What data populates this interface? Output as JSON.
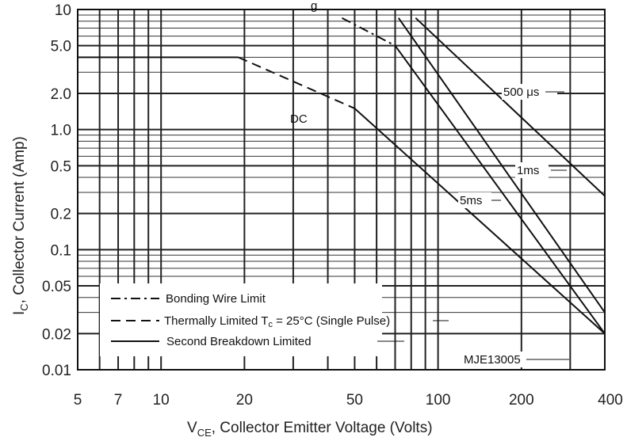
{
  "chart_data": {
    "type": "line",
    "title_fragment": "g",
    "xlabel": {
      "main": "V",
      "sub": "CE",
      "rest": ", Collector Emitter Voltage (Volts)"
    },
    "ylabel": {
      "main": "I",
      "sub": "C",
      "rest": ", Collector Current (Amp)"
    },
    "x_scale": "log",
    "y_scale": "log",
    "xlim": [
      5,
      400
    ],
    "ylim": [
      0.01,
      10
    ],
    "x_ticks": [
      {
        "v": 5,
        "label": "5"
      },
      {
        "v": 7,
        "label": "7"
      },
      {
        "v": 10,
        "label": "10"
      },
      {
        "v": 20,
        "label": "20"
      },
      {
        "v": 50,
        "label": "50"
      },
      {
        "v": 100,
        "label": "100"
      },
      {
        "v": 200,
        "label": "200"
      },
      {
        "v": 400,
        "label": "400"
      }
    ],
    "y_ticks": [
      {
        "v": 10,
        "label": "10"
      },
      {
        "v": 5,
        "label": "5.0"
      },
      {
        "v": 2,
        "label": "2.0"
      },
      {
        "v": 1,
        "label": "1.0"
      },
      {
        "v": 0.5,
        "label": "0.5"
      },
      {
        "v": 0.2,
        "label": "0.2"
      },
      {
        "v": 0.1,
        "label": "0.1"
      },
      {
        "v": 0.05,
        "label": "0.05"
      },
      {
        "v": 0.02,
        "label": "0.02"
      },
      {
        "v": 0.01,
        "label": "0.01"
      }
    ],
    "grid": true,
    "series": [
      {
        "label": "DC",
        "segments": [
          {
            "style": "solid",
            "points": [
              [
                5,
                4
              ],
              [
                19,
                4
              ]
            ]
          },
          {
            "style": "dashed",
            "points": [
              [
                19,
                4
              ],
              [
                50,
                1.5
              ]
            ]
          },
          {
            "style": "solid",
            "points": [
              [
                50,
                1.5
              ],
              [
                400,
                0.02
              ]
            ]
          }
        ]
      },
      {
        "label": "5ms",
        "segments": [
          {
            "style": "dashdot",
            "points": [
              [
                45,
                8.5
              ],
              [
                70,
                5
              ]
            ]
          },
          {
            "style": "solid",
            "points": [
              [
                70,
                5
              ],
              [
                400,
                0.02
              ]
            ]
          }
        ]
      },
      {
        "label": "1ms",
        "segments": [
          {
            "style": "solid",
            "points": [
              [
                72,
                8.5
              ],
              [
                400,
                0.03
              ]
            ]
          }
        ]
      },
      {
        "label": "500 μs",
        "segments": [
          {
            "style": "solid",
            "points": [
              [
                83,
                8.5
              ],
              [
                400,
                0.28
              ]
            ]
          }
        ]
      }
    ],
    "part_label": "MJE13005",
    "legend_position": "bottom-left",
    "legend": [
      {
        "style": "dashdot",
        "label": "Bonding Wire Limit"
      },
      {
        "style": "dashed",
        "label": "Thermally Limited T",
        "sub": "c",
        "label_rest": " = 25°C (Single Pulse)"
      },
      {
        "style": "solid",
        "label": "Second Breakdown Limited"
      }
    ]
  }
}
